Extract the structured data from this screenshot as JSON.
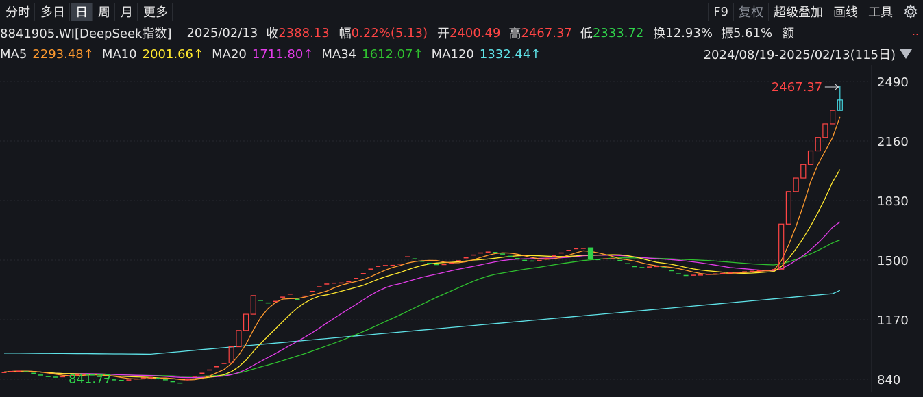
{
  "toolbar": {
    "tabs": [
      "分时",
      "多日",
      "日",
      "周",
      "月",
      "更多"
    ],
    "active_tab": "日",
    "right": [
      "F9",
      "复权",
      "超级叠加",
      "画线",
      "工具"
    ],
    "settings_icon": "gear-icon"
  },
  "info": {
    "code_name": "8841905.WI[DeepSeek指数]",
    "date": "2025/02/13",
    "close_label": "收",
    "close": "2388.13",
    "change_label": "幅",
    "change": "0.22%(5.13)",
    "open_label": "开",
    "open": "2400.49",
    "high_label": "高",
    "high": "2467.37",
    "low_label": "低",
    "low": "2333.72",
    "turnover_label": "换",
    "turnover": "12.93%",
    "amplitude_label": "振",
    "amplitude": "5.61%",
    "amount_label": "额"
  },
  "ma": {
    "ma5_label": "MA5",
    "ma5": "2293.48↑",
    "ma10_label": "MA10",
    "ma10": "2001.66↑",
    "ma20_label": "MA20",
    "ma20": "1711.80↑",
    "ma34_label": "MA34",
    "ma34": "1612.07↑",
    "ma120_label": "MA120",
    "ma120": "1332.44↑"
  },
  "range_label": "2024/08/19-2025/02/13(115日)",
  "colors": {
    "up": "#ff4545",
    "down": "#2fd24a",
    "flat": "#45d6e0",
    "ma5": "#ff9a2e",
    "ma10": "#ffe82e",
    "ma20": "#e23ce8",
    "ma34": "#2fc02f",
    "ma120": "#5fe3e8"
  },
  "chart_data": {
    "type": "candlestick",
    "y_ticks": [
      "2490",
      "2160",
      "1830",
      "1500",
      "1170",
      "840"
    ],
    "ylim": [
      800,
      2600
    ],
    "max_label": "2467.37",
    "min_label": "841.77",
    "x_range": [
      "2024/08/19",
      "2025/02/13"
    ],
    "last_candle": {
      "open": 2400.49,
      "high": 2467.37,
      "low": 2333.72,
      "close": 2388.13
    },
    "series_last": {
      "MA5": 2293.48,
      "MA10": 2001.66,
      "MA20": 1711.8,
      "MA34": 1612.07,
      "MA120": 1332.44
    }
  }
}
